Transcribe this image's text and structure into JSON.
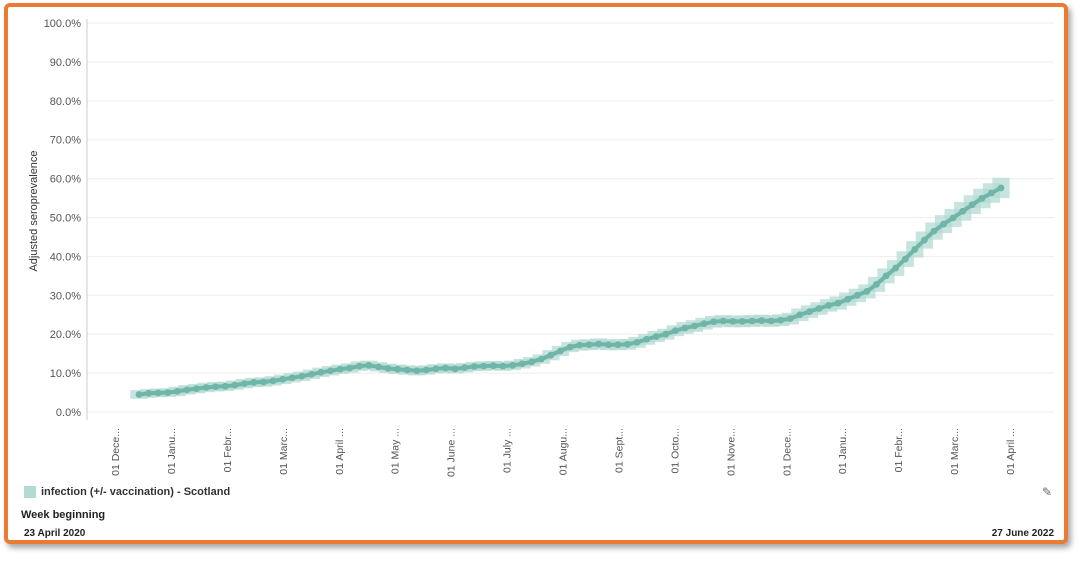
{
  "chart_data": {
    "type": "line",
    "ylabel": "Adjusted seroprevalence",
    "xlabel": "Week beginning",
    "ylim": [
      0,
      100
    ],
    "yticks": [
      "0.0%",
      "10.0%",
      "20.0%",
      "30.0%",
      "40.0%",
      "50.0%",
      "60.0%",
      "70.0%",
      "80.0%",
      "90.0%",
      "100.0%"
    ],
    "xticks": [
      "01 Dece...",
      "01 Janu...",
      "01 Febr...",
      "01 Marc...",
      "01 April ...",
      "01 May ...",
      "01 June ...",
      "01 July ...",
      "01 Augu...",
      "01 Sept...",
      "01 Octo...",
      "01 Nove...",
      "01 Dece...",
      "01 Janu...",
      "01 Febr...",
      "01 Marc...",
      "01 April ..."
    ],
    "series": [
      {
        "name": "infection (+/- vaccination) - Scotland",
        "color": "#6fb5a8",
        "band_color": "#b4dbd3",
        "values": [
          4.5,
          4.8,
          4.9,
          5.0,
          5.3,
          5.7,
          6.0,
          6.3,
          6.5,
          6.6,
          6.9,
          7.3,
          7.6,
          7.7,
          8.0,
          8.4,
          8.8,
          9.2,
          9.7,
          10.2,
          10.6,
          11.0,
          11.3,
          11.8,
          12.0,
          11.6,
          11.2,
          11.0,
          10.8,
          10.6,
          10.8,
          11.1,
          11.3,
          11.1,
          11.4,
          11.7,
          11.8,
          11.9,
          11.8,
          12.0,
          12.4,
          12.9,
          13.6,
          14.6,
          15.7,
          16.7,
          17.2,
          17.3,
          17.5,
          17.3,
          17.3,
          17.4,
          17.9,
          18.7,
          19.4,
          20.0,
          20.9,
          21.6,
          22.1,
          22.7,
          23.2,
          23.4,
          23.3,
          23.3,
          23.4,
          23.5,
          23.4,
          23.6,
          24.0,
          25.0,
          25.8,
          26.6,
          27.4,
          28.0,
          29.0,
          30.0,
          31.0,
          32.8,
          35.0,
          37.0,
          39.3,
          41.8,
          44.2,
          46.5,
          48.3,
          49.9,
          51.6,
          53.3,
          54.9,
          56.3,
          57.6
        ],
        "lower": [
          3.9,
          4.2,
          4.3,
          4.4,
          4.6,
          5.0,
          5.3,
          5.6,
          5.8,
          5.9,
          6.2,
          6.6,
          6.9,
          7.0,
          7.3,
          7.7,
          8.1,
          8.5,
          9.0,
          9.5,
          9.9,
          10.3,
          10.6,
          11.1,
          11.3,
          10.9,
          10.5,
          10.3,
          10.1,
          9.9,
          10.1,
          10.4,
          10.6,
          10.4,
          10.7,
          11.0,
          11.1,
          11.2,
          11.1,
          11.3,
          11.7,
          12.2,
          12.9,
          13.8,
          14.9,
          15.9,
          16.3,
          16.4,
          16.6,
          16.4,
          16.4,
          16.5,
          17.0,
          17.8,
          18.5,
          19.1,
          20.0,
          20.6,
          21.1,
          21.7,
          22.2,
          22.4,
          22.3,
          22.3,
          22.4,
          22.5,
          22.4,
          22.6,
          23.0,
          23.9,
          24.7,
          25.5,
          26.3,
          26.8,
          27.8,
          28.8,
          29.7,
          31.4,
          33.6,
          35.5,
          37.8,
          40.2,
          42.5,
          44.8,
          46.5,
          48.1,
          49.7,
          51.4,
          52.9,
          54.3,
          55.5
        ],
        "upper": [
          5.1,
          5.4,
          5.5,
          5.6,
          6.0,
          6.4,
          6.7,
          7.0,
          7.2,
          7.3,
          7.6,
          8.0,
          8.3,
          8.4,
          8.7,
          9.1,
          9.5,
          9.9,
          10.4,
          10.9,
          11.3,
          11.7,
          12.0,
          12.5,
          12.7,
          12.3,
          11.9,
          11.7,
          11.5,
          11.3,
          11.5,
          11.8,
          12.0,
          11.8,
          12.1,
          12.4,
          12.5,
          12.6,
          12.5,
          12.7,
          13.1,
          13.6,
          14.3,
          15.4,
          16.5,
          17.5,
          18.1,
          18.2,
          18.4,
          18.2,
          18.2,
          18.3,
          18.8,
          19.6,
          20.3,
          20.9,
          21.8,
          22.6,
          23.1,
          23.7,
          24.2,
          24.4,
          24.3,
          24.3,
          24.4,
          24.5,
          24.4,
          24.6,
          25.0,
          26.1,
          26.9,
          27.7,
          28.5,
          29.2,
          30.2,
          31.2,
          32.3,
          34.2,
          36.4,
          38.5,
          40.8,
          43.4,
          45.9,
          48.2,
          50.1,
          51.7,
          53.5,
          55.2,
          56.9,
          58.3,
          59.7
        ]
      }
    ],
    "grid": true,
    "legend": "bottom-left",
    "date_range": {
      "start": "23 April 2020",
      "end": "27 June 2022"
    }
  }
}
